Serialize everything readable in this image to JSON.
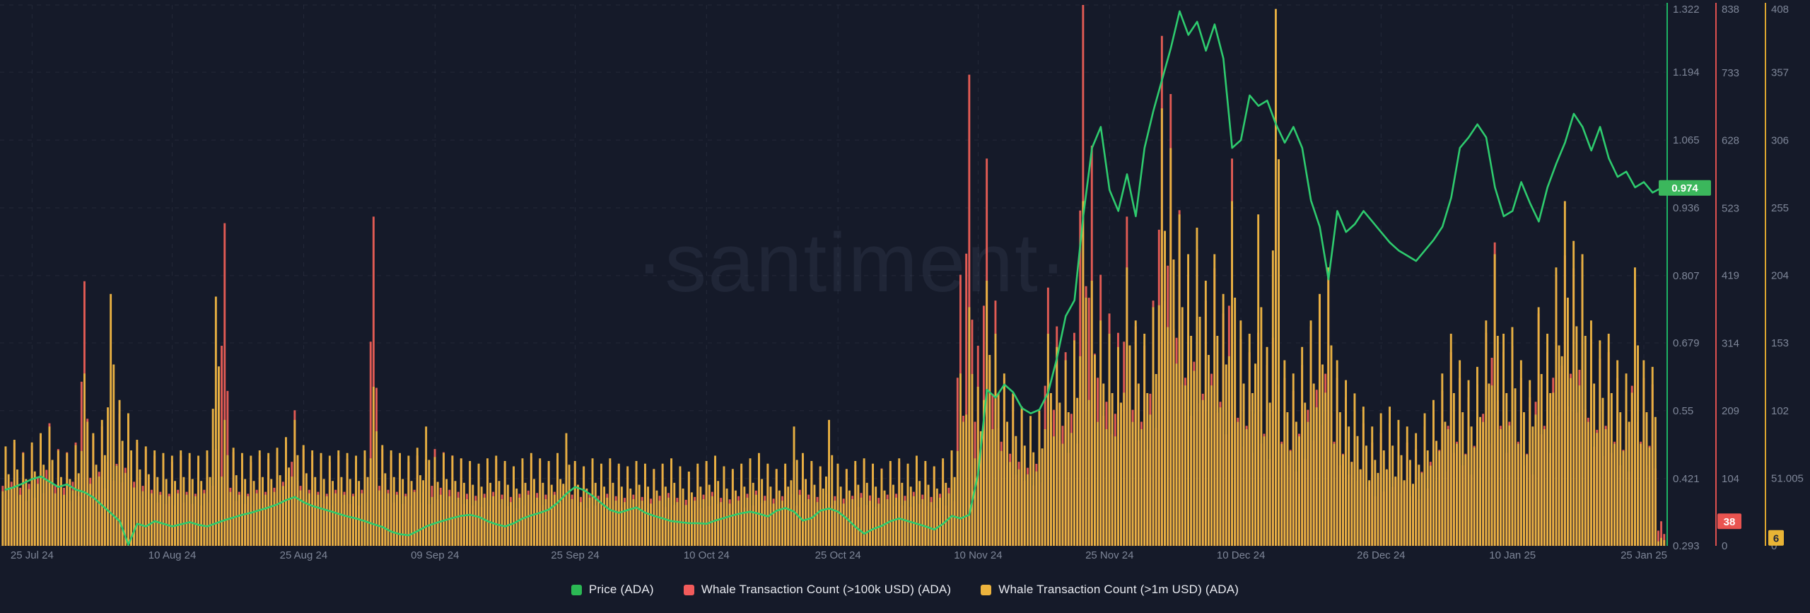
{
  "watermark": "·santiment·",
  "colors": {
    "background": "#151a29",
    "grid": "rgba(130,140,165,0.13)",
    "watermark_text": "#202637",
    "price_line": "#2ecb6e",
    "red_bar": "#e25b54",
    "yellow_bar": "#e8b042",
    "price_axis_line": "#1db364",
    "red_axis_line": "#e0514f",
    "yellow_axis_line": "#dca62f",
    "tick_text": "#7e8698",
    "price_badge_bg": "#3bb75c",
    "price_badge_text": "#ffffff",
    "red_badge_bg": "#ea5450",
    "red_badge_text": "#ffffff",
    "yellow_badge_bg": "#e9b435",
    "yellow_badge_text": "#20253a"
  },
  "legend": {
    "items": [
      {
        "label": "Price (ADA)",
        "color": "#2bb954"
      },
      {
        "label": "Whale Transaction Count (>100k USD) (ADA)",
        "color": "#f25b5b"
      },
      {
        "label": "Whale Transaction Count (>1m USD) (ADA)",
        "color": "#ecb33d"
      }
    ]
  },
  "axes": {
    "price": {
      "ticks": [
        "1.322",
        "1.194",
        "1.065",
        "0.936",
        "0.807",
        "0.679",
        "0.55",
        "0.421",
        "0.293"
      ],
      "badge": "0.974"
    },
    "whale_100k": {
      "ticks": [
        "838",
        "733",
        "628",
        "523",
        "419",
        "314",
        "209",
        "104",
        "0"
      ],
      "badge": "38"
    },
    "whale_1m": {
      "ticks": [
        "408",
        "357",
        "306",
        "255",
        "204",
        "153",
        "102",
        "51.005",
        "0"
      ],
      "badge": "6"
    }
  },
  "chart_data": {
    "type": "mixed",
    "x_unit": "day",
    "x_start": "2024-07-22",
    "x_end": "2025-01-27",
    "x_tick_labels": [
      {
        "label": "25 Jul 24",
        "i": 3
      },
      {
        "label": "10 Aug 24",
        "i": 19
      },
      {
        "label": "25 Aug 24",
        "i": 34
      },
      {
        "label": "09 Sep 24",
        "i": 49
      },
      {
        "label": "25 Sep 24",
        "i": 65
      },
      {
        "label": "10 Oct 24",
        "i": 80
      },
      {
        "label": "25 Oct 24",
        "i": 95
      },
      {
        "label": "10 Nov 24",
        "i": 111
      },
      {
        "label": "25 Nov 24",
        "i": 126
      },
      {
        "label": "10 Dec 24",
        "i": 141
      },
      {
        "label": "26 Dec 24",
        "i": 157
      },
      {
        "label": "10 Jan 25",
        "i": 172
      },
      {
        "label": "25 Jan 25",
        "i": 187
      }
    ],
    "axis_ranges": {
      "price": [
        0.293,
        1.322
      ],
      "whale_100k": [
        0,
        838
      ],
      "whale_1m": [
        0,
        408
      ]
    },
    "legend_position": "bottom-center",
    "grid": true,
    "series": [
      {
        "name": "Price (ADA)",
        "type": "line",
        "axis": "price",
        "color": "#2ecb6e",
        "values": [
          0.4,
          0.405,
          0.412,
          0.42,
          0.425,
          0.415,
          0.405,
          0.41,
          0.4,
          0.395,
          0.385,
          0.37,
          0.355,
          0.34,
          0.295,
          0.335,
          0.33,
          0.34,
          0.335,
          0.33,
          0.334,
          0.338,
          0.333,
          0.33,
          0.336,
          0.342,
          0.347,
          0.352,
          0.356,
          0.361,
          0.366,
          0.372,
          0.38,
          0.386,
          0.376,
          0.369,
          0.364,
          0.359,
          0.354,
          0.349,
          0.345,
          0.34,
          0.334,
          0.329,
          0.32,
          0.315,
          0.313,
          0.321,
          0.33,
          0.336,
          0.341,
          0.346,
          0.35,
          0.352,
          0.348,
          0.34,
          0.334,
          0.33,
          0.336,
          0.345,
          0.351,
          0.356,
          0.362,
          0.375,
          0.392,
          0.405,
          0.399,
          0.388,
          0.374,
          0.361,
          0.356,
          0.361,
          0.366,
          0.356,
          0.35,
          0.345,
          0.34,
          0.338,
          0.336,
          0.336,
          0.335,
          0.341,
          0.346,
          0.351,
          0.355,
          0.358,
          0.354,
          0.349,
          0.36,
          0.365,
          0.358,
          0.341,
          0.346,
          0.36,
          0.364,
          0.358,
          0.345,
          0.329,
          0.316,
          0.325,
          0.331,
          0.34,
          0.345,
          0.34,
          0.335,
          0.33,
          0.324,
          0.335,
          0.35,
          0.345,
          0.352,
          0.43,
          0.59,
          0.575,
          0.6,
          0.585,
          0.555,
          0.545,
          0.552,
          0.585,
          0.65,
          0.73,
          0.76,
          0.92,
          1.05,
          1.09,
          0.97,
          0.93,
          1.0,
          0.92,
          1.05,
          1.12,
          1.18,
          1.24,
          1.31,
          1.265,
          1.29,
          1.235,
          1.285,
          1.22,
          1.05,
          1.065,
          1.15,
          1.13,
          1.14,
          1.095,
          1.06,
          1.09,
          1.05,
          0.95,
          0.9,
          0.8,
          0.93,
          0.89,
          0.905,
          0.93,
          0.91,
          0.89,
          0.87,
          0.855,
          0.845,
          0.835,
          0.855,
          0.875,
          0.9,
          0.955,
          1.05,
          1.07,
          1.095,
          1.07,
          0.975,
          0.92,
          0.93,
          0.985,
          0.945,
          0.91,
          0.975,
          1.02,
          1.06,
          1.115,
          1.09,
          1.045,
          1.09,
          1.03,
          0.995,
          1.005,
          0.975,
          0.985,
          0.965,
          0.974
        ]
      },
      {
        "name": "Whale Transaction Count (>100k USD) (ADA)",
        "type": "bar",
        "axis": "whale_100k",
        "color": "#e25b54",
        "values": [
          150,
          160,
          145,
          155,
          170,
          190,
          150,
          145,
          160,
          410,
          170,
          185,
          210,
          205,
          195,
          160,
          150,
          140,
          135,
          130,
          140,
          135,
          130,
          140,
          150,
          500,
          145,
          135,
          130,
          140,
          135,
          145,
          160,
          210,
          150,
          140,
          135,
          130,
          140,
          135,
          130,
          140,
          510,
          150,
          140,
          135,
          130,
          140,
          134,
          150,
          145,
          140,
          135,
          130,
          125,
          130,
          135,
          128,
          122,
          130,
          138,
          132,
          128,
          135,
          150,
          128,
          122,
          130,
          125,
          130,
          124,
          120,
          128,
          122,
          118,
          125,
          132,
          120,
          115,
          122,
          128,
          135,
          120,
          116,
          124,
          130,
          138,
          125,
          118,
          124,
          130,
          140,
          128,
          122,
          130,
          124,
          118,
          125,
          132,
          126,
          120,
          128,
          130,
          125,
          135,
          128,
          122,
          130,
          145,
          420,
          730,
          310,
          600,
          380,
          260,
          230,
          210,
          195,
          205,
          400,
          340,
          300,
          330,
          838,
          620,
          420,
          360,
          330,
          510,
          340,
          310,
          380,
          790,
          700,
          520,
          420,
          460,
          380,
          430,
          360,
          600,
          320,
          300,
          330,
          280,
          520,
          260,
          240,
          280,
          340,
          390,
          430,
          260,
          230,
          210,
          190,
          160,
          175,
          190,
          170,
          160,
          150,
          185,
          210,
          240,
          300,
          260,
          230,
          250,
          330,
          470,
          300,
          310,
          260,
          230,
          360,
          300,
          420,
          450,
          430,
          440,
          320,
          290,
          300,
          260,
          240,
          400,
          260,
          250,
          38
        ]
      },
      {
        "name": "Whale Transaction Count (>1m USD) (ADA)",
        "type": "bar",
        "axis": "whale_1m",
        "color": "#e8b042",
        "values": [
          75,
          80,
          70,
          78,
          85,
          90,
          72,
          70,
          76,
          130,
          85,
          95,
          190,
          110,
          100,
          80,
          75,
          72,
          70,
          68,
          72,
          70,
          68,
          72,
          188,
          95,
          74,
          70,
          68,
          72,
          70,
          74,
          82,
          95,
          76,
          72,
          70,
          68,
          72,
          70,
          68,
          72,
          120,
          76,
          72,
          70,
          68,
          74,
          90,
          67,
          70,
          68,
          66,
          64,
          62,
          66,
          68,
          64,
          60,
          66,
          70,
          66,
          64,
          70,
          85,
          64,
          60,
          66,
          62,
          66,
          62,
          60,
          64,
          62,
          58,
          62,
          66,
          60,
          56,
          62,
          64,
          68,
          60,
          58,
          62,
          66,
          70,
          62,
          58,
          62,
          90,
          70,
          64,
          60,
          95,
          62,
          58,
          64,
          66,
          62,
          58,
          64,
          66,
          62,
          68,
          64,
          60,
          66,
          72,
          130,
          180,
          120,
          200,
          160,
          130,
          115,
          105,
          98,
          102,
          160,
          150,
          140,
          155,
          260,
          200,
          170,
          160,
          150,
          210,
          170,
          160,
          180,
          330,
          300,
          250,
          220,
          240,
          200,
          220,
          190,
          260,
          170,
          160,
          250,
          150,
          405,
          140,
          130,
          150,
          170,
          190,
          210,
          140,
          125,
          115,
          105,
          90,
          100,
          105,
          95,
          90,
          85,
          100,
          110,
          130,
          160,
          140,
          125,
          135,
          170,
          220,
          160,
          165,
          140,
          125,
          180,
          160,
          210,
          260,
          230,
          220,
          170,
          155,
          160,
          140,
          130,
          210,
          140,
          135,
          6
        ]
      }
    ]
  }
}
